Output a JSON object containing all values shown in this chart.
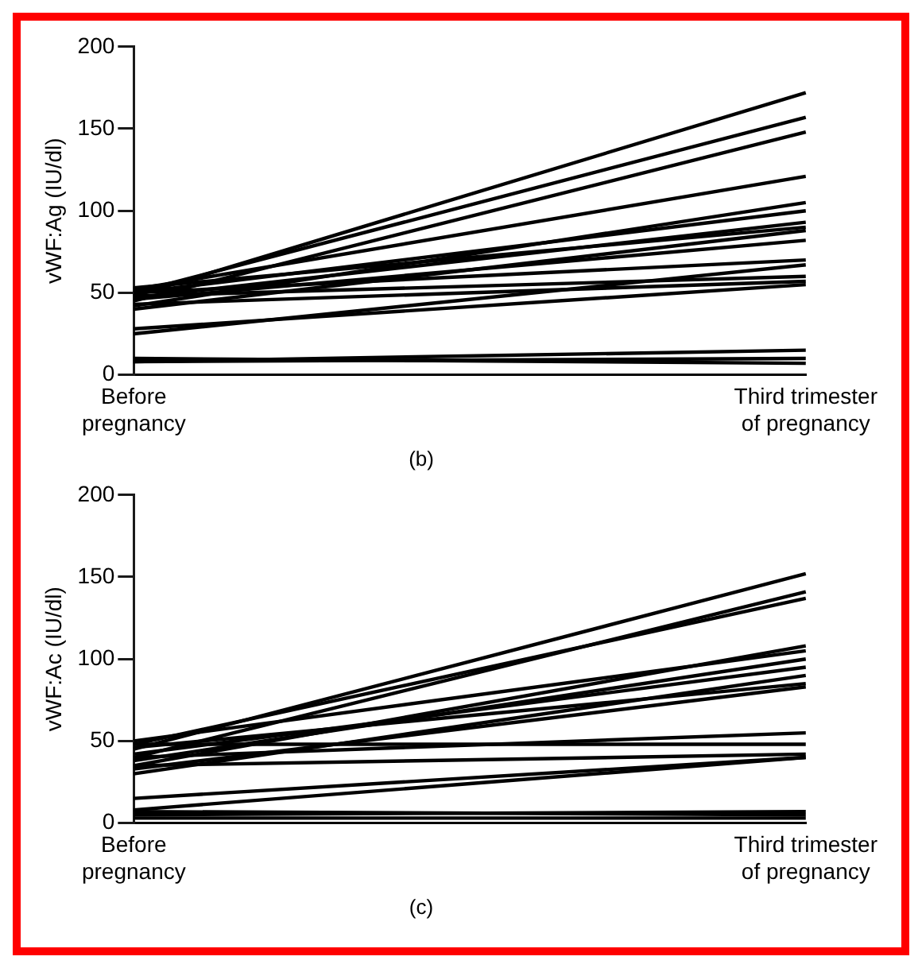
{
  "chart_data": [
    {
      "type": "line",
      "title": "(b)",
      "ylabel": "vWF:Ag (IU/dl)",
      "categories": [
        "Before\npregnancy",
        "Third trimester\nof pregnancy"
      ],
      "ylim": [
        0,
        200
      ],
      "yticks": [
        0,
        50,
        100,
        150,
        200
      ],
      "grid": false,
      "legend": false,
      "marker": "none",
      "line_style": "solid",
      "series": [
        {
          "color": "#000000",
          "values": [
            48,
            172
          ]
        },
        {
          "color": "#000000",
          "values": [
            50,
            157
          ]
        },
        {
          "color": "#000000",
          "values": [
            45,
            148
          ]
        },
        {
          "color": "#000000",
          "values": [
            52,
            121
          ]
        },
        {
          "color": "#000000",
          "values": [
            42,
            105
          ]
        },
        {
          "color": "#000000",
          "values": [
            50,
            100
          ]
        },
        {
          "color": "#000000",
          "values": [
            47,
            93
          ]
        },
        {
          "color": "#000000",
          "values": [
            53,
            90
          ]
        },
        {
          "color": "#000000",
          "values": [
            40,
            88
          ]
        },
        {
          "color": "#000000",
          "values": [
            46,
            82
          ]
        },
        {
          "color": "#000000",
          "values": [
            50,
            70
          ]
        },
        {
          "color": "#000000",
          "values": [
            25,
            67
          ]
        },
        {
          "color": "#000000",
          "values": [
            48,
            60
          ]
        },
        {
          "color": "#000000",
          "values": [
            43,
            57
          ]
        },
        {
          "color": "#000000",
          "values": [
            28,
            55
          ]
        },
        {
          "color": "#000000",
          "values": [
            8,
            15
          ]
        },
        {
          "color": "#000000",
          "values": [
            8,
            10
          ]
        },
        {
          "color": "#000000",
          "values": [
            10,
            7
          ]
        }
      ]
    },
    {
      "type": "line",
      "title": "(c)",
      "ylabel": "vWF:Ac (IU/dl)",
      "categories": [
        "Before\npregnancy",
        "Third trimester\nof pregnancy"
      ],
      "ylim": [
        0,
        200
      ],
      "yticks": [
        0,
        50,
        100,
        150,
        200
      ],
      "grid": false,
      "legend": false,
      "marker": "none",
      "line_style": "solid",
      "series": [
        {
          "color": "#000000",
          "values": [
            45,
            152
          ]
        },
        {
          "color": "#000000",
          "values": [
            40,
            141
          ]
        },
        {
          "color": "#000000",
          "values": [
            48,
            137
          ]
        },
        {
          "color": "#000000",
          "values": [
            35,
            108
          ]
        },
        {
          "color": "#000000",
          "values": [
            50,
            105
          ]
        },
        {
          "color": "#000000",
          "values": [
            38,
            100
          ]
        },
        {
          "color": "#000000",
          "values": [
            42,
            95
          ]
        },
        {
          "color": "#000000",
          "values": [
            30,
            90
          ]
        },
        {
          "color": "#000000",
          "values": [
            46,
            85
          ]
        },
        {
          "color": "#000000",
          "values": [
            33,
            83
          ]
        },
        {
          "color": "#000000",
          "values": [
            40,
            55
          ]
        },
        {
          "color": "#000000",
          "values": [
            48,
            48
          ]
        },
        {
          "color": "#000000",
          "values": [
            15,
            40
          ]
        },
        {
          "color": "#000000",
          "values": [
            35,
            42
          ]
        },
        {
          "color": "#000000",
          "values": [
            8,
            40
          ]
        },
        {
          "color": "#000000",
          "values": [
            5,
            7
          ]
        },
        {
          "color": "#000000",
          "values": [
            7,
            5
          ]
        },
        {
          "color": "#000000",
          "values": [
            3,
            3
          ]
        }
      ]
    }
  ]
}
